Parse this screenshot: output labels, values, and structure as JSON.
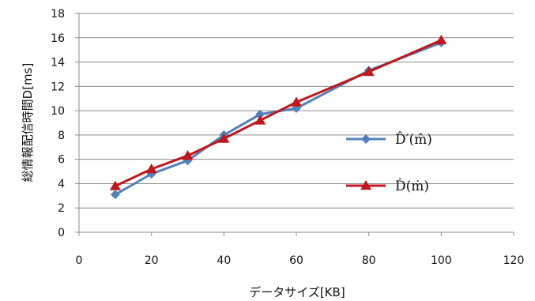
{
  "chart_data": {
    "type": "line",
    "xlabel": "データサイズ[KB]",
    "ylabel": "総情報配信時間D[ms]",
    "xlim": [
      0,
      120
    ],
    "ylim": [
      0,
      18
    ],
    "xticks": [
      0,
      20,
      40,
      60,
      80,
      100,
      120
    ],
    "yticks": [
      0,
      2,
      4,
      6,
      8,
      10,
      12,
      14,
      16,
      18
    ],
    "grid": "horizontal",
    "legend_position": "right",
    "x": [
      10,
      20,
      30,
      40,
      50,
      60,
      80,
      100
    ],
    "series": [
      {
        "name": "D̂′(m̂)",
        "color": "#4f81bd",
        "marker": "diamond",
        "values": [
          3.1,
          4.8,
          5.9,
          8.0,
          9.7,
          10.2,
          13.3,
          15.6
        ]
      },
      {
        "name": "Ḋ(ṁ)",
        "color": "#c0161c",
        "marker": "triangle",
        "values": [
          3.8,
          5.2,
          6.3,
          7.7,
          9.2,
          10.7,
          13.2,
          15.8
        ]
      }
    ]
  }
}
